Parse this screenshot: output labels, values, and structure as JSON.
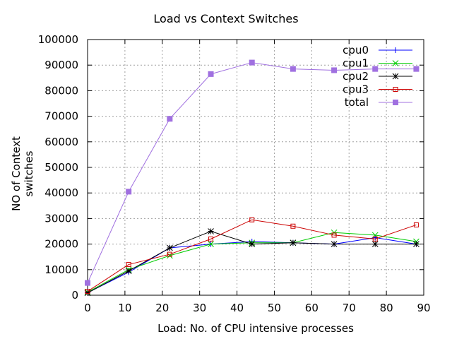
{
  "chart_data": {
    "type": "line",
    "title": "Load vs Context Switches",
    "xlabel": "Load: No. of CPU intensive processes",
    "ylabel": "NO of Context switches",
    "xlim": [
      0,
      90
    ],
    "ylim": [
      0,
      100000
    ],
    "xticks": [
      0,
      10,
      20,
      30,
      40,
      50,
      60,
      70,
      80,
      90
    ],
    "yticks": [
      0,
      10000,
      20000,
      30000,
      40000,
      50000,
      60000,
      70000,
      80000,
      90000,
      100000
    ],
    "grid": true,
    "legend_position": "top-right",
    "x": [
      0,
      11,
      22,
      33,
      44,
      55,
      66,
      77,
      88
    ],
    "series": [
      {
        "name": "cpu0",
        "color": "#0000ff",
        "marker": "plus",
        "values": [
          1000,
          9000,
          18500,
          20000,
          21000,
          20500,
          20000,
          22500,
          20000
        ]
      },
      {
        "name": "cpu1",
        "color": "#00cc00",
        "marker": "cross",
        "values": [
          1200,
          10000,
          15500,
          20000,
          20500,
          20500,
          24500,
          23500,
          21000
        ]
      },
      {
        "name": "cpu2",
        "color": "#000000",
        "marker": "star",
        "values": [
          900,
          9500,
          18500,
          25000,
          20000,
          20500,
          20000,
          20000,
          20000
        ]
      },
      {
        "name": "cpu3",
        "color": "#cc0000",
        "marker": "open-square",
        "values": [
          1500,
          12000,
          16000,
          22000,
          29500,
          27000,
          23500,
          22000,
          27500
        ]
      },
      {
        "name": "total",
        "color": "#a070e0",
        "marker": "filled-square",
        "values": [
          4800,
          40500,
          69000,
          86500,
          91000,
          88500,
          88000,
          88500,
          88500
        ]
      }
    ]
  }
}
